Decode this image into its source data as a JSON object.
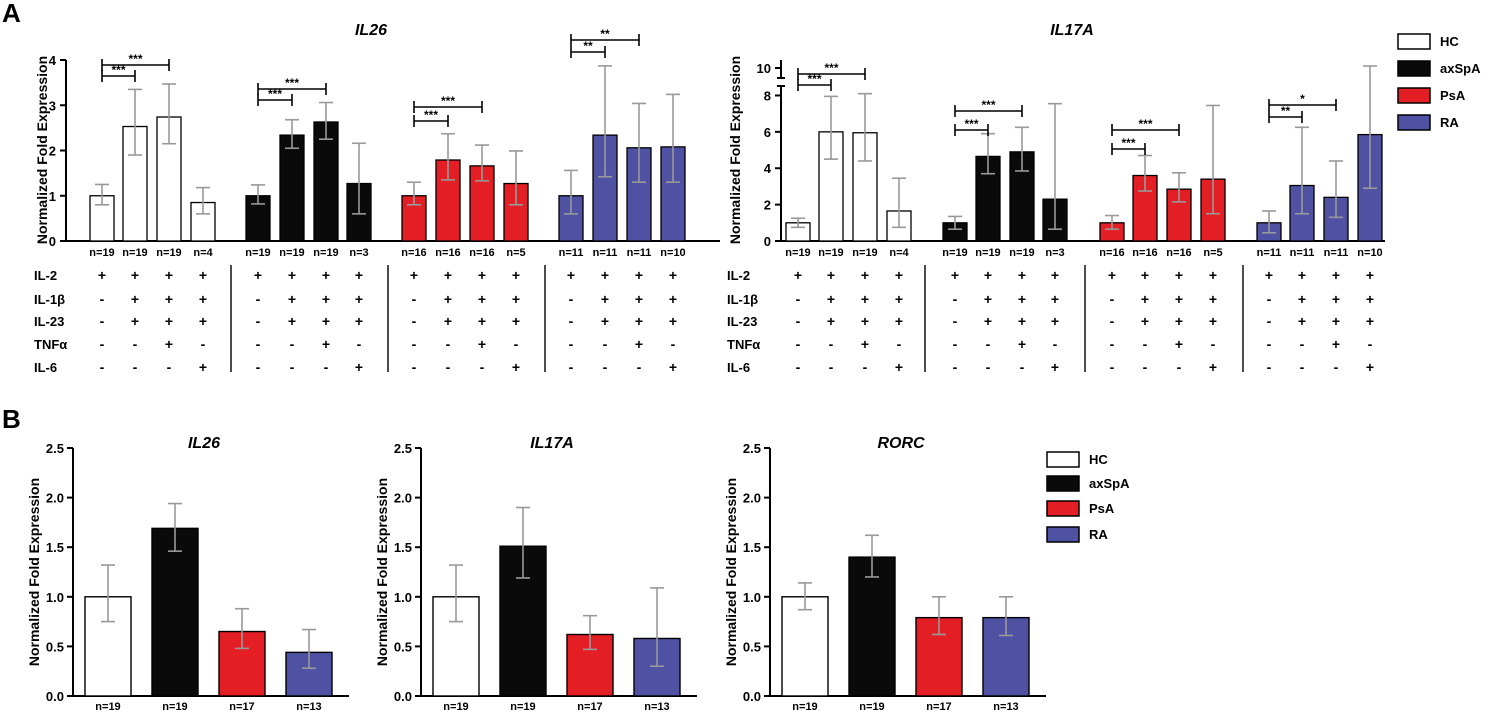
{
  "figure": {
    "panel_a_label": "A",
    "panel_b_label": "B",
    "legend": [
      {
        "name": "HC",
        "color": "#ffffff"
      },
      {
        "name": "axSpA",
        "color": "#0a0a0a"
      },
      {
        "name": "PsA",
        "color": "#e31e24"
      },
      {
        "name": "RA",
        "color": "#4f52a3"
      }
    ]
  },
  "chart_data": [
    {
      "id": "A-IL26",
      "type": "bar",
      "title": "IL26",
      "ylabel": "Normalized Fold Expression",
      "ylim": [
        0,
        4
      ],
      "yticks": [
        "0",
        "1",
        "2",
        "3",
        "4"
      ],
      "groups": [
        "HC",
        "axSpA",
        "PsA",
        "RA"
      ],
      "series": [
        {
          "name": "HC",
          "values": [
            1.0,
            2.53,
            2.74,
            0.85
          ],
          "err_low": [
            0.8,
            1.9,
            2.15,
            0.6
          ],
          "err_high": [
            1.25,
            3.35,
            3.47,
            1.18
          ],
          "n": [
            "n=19",
            "n=19",
            "n=19",
            "n=4"
          ]
        },
        {
          "name": "axSpA",
          "values": [
            1.0,
            2.34,
            2.63,
            1.27
          ],
          "err_low": [
            0.82,
            2.05,
            2.25,
            0.6
          ],
          "err_high": [
            1.24,
            2.68,
            3.06,
            2.16
          ],
          "n": [
            "n=19",
            "n=19",
            "n=19",
            "n=3"
          ]
        },
        {
          "name": "PsA",
          "values": [
            1.0,
            1.79,
            1.66,
            1.27
          ],
          "err_low": [
            0.8,
            1.35,
            1.33,
            0.8
          ],
          "err_high": [
            1.3,
            2.37,
            2.12,
            1.99
          ],
          "n": [
            "n=16",
            "n=16",
            "n=16",
            "n=5"
          ]
        },
        {
          "name": "RA",
          "values": [
            1.0,
            2.34,
            2.06,
            2.08
          ],
          "err_low": [
            0.6,
            1.42,
            1.3,
            1.3
          ],
          "err_high": [
            1.56,
            3.87,
            3.04,
            3.24
          ],
          "n": [
            "n=11",
            "n=11",
            "n=11",
            "n=10"
          ]
        }
      ],
      "significance": [
        [
          {
            "to": 1,
            "label": "***"
          },
          {
            "to": 2,
            "label": "***"
          }
        ],
        [
          {
            "to": 1,
            "label": "***"
          },
          {
            "to": 2,
            "label": "***"
          }
        ],
        [
          {
            "to": 1,
            "label": "***"
          },
          {
            "to": 2,
            "label": "***"
          }
        ],
        [
          {
            "to": 1,
            "label": "**"
          },
          {
            "to": 2,
            "label": "**"
          }
        ]
      ]
    },
    {
      "id": "A-IL17A",
      "type": "bar",
      "title": "IL17A",
      "ylabel": "Normalized Fold Expression",
      "ylim": [
        0,
        10
      ],
      "axis_break": [
        8.5,
        9.5
      ],
      "yticks": [
        "0",
        "2",
        "4",
        "6",
        "8",
        "10"
      ],
      "groups": [
        "HC",
        "axSpA",
        "PsA",
        "RA"
      ],
      "series": [
        {
          "name": "HC",
          "values": [
            1.0,
            6.0,
            5.95,
            1.65
          ],
          "err_low": [
            0.75,
            4.5,
            4.4,
            0.75
          ],
          "err_high": [
            1.25,
            7.95,
            8.1,
            3.45
          ],
          "n": [
            "n=19",
            "n=19",
            "n=19",
            "n=4"
          ]
        },
        {
          "name": "axSpA",
          "values": [
            1.0,
            4.65,
            4.9,
            2.3
          ],
          "err_low": [
            0.65,
            3.7,
            3.85,
            0.65
          ],
          "err_high": [
            1.35,
            5.9,
            6.25,
            7.55
          ],
          "n": [
            "n=19",
            "n=19",
            "n=19",
            "n=3"
          ]
        },
        {
          "name": "PsA",
          "values": [
            1.0,
            3.6,
            2.85,
            3.4
          ],
          "err_low": [
            0.65,
            2.75,
            2.15,
            1.5
          ],
          "err_high": [
            1.4,
            4.7,
            3.75,
            7.45
          ],
          "n": [
            "n=16",
            "n=16",
            "n=16",
            "n=5"
          ]
        },
        {
          "name": "RA",
          "values": [
            1.0,
            3.05,
            2.4,
            5.85
          ],
          "err_low": [
            0.45,
            1.5,
            1.3,
            2.9
          ],
          "err_high": [
            1.65,
            6.25,
            4.4,
            10.4
          ],
          "n": [
            "n=11",
            "n=11",
            "n=11",
            "n=10"
          ]
        }
      ],
      "significance": [
        [
          {
            "to": 1,
            "label": "***"
          },
          {
            "to": 2,
            "label": "***"
          }
        ],
        [
          {
            "to": 1,
            "label": "***"
          },
          {
            "to": 2,
            "label": "***"
          }
        ],
        [
          {
            "to": 1,
            "label": "***"
          },
          {
            "to": 2,
            "label": "***"
          }
        ],
        [
          {
            "to": 1,
            "label": "**"
          },
          {
            "to": 2,
            "label": "*"
          }
        ]
      ]
    },
    {
      "id": "B-IL26",
      "type": "bar",
      "title": "IL26",
      "ylabel": "Normalized Fold Expression",
      "ylim": [
        0,
        2.5
      ],
      "yticks": [
        "0.0",
        "0.5",
        "1.0",
        "1.5",
        "2.0",
        "2.5"
      ],
      "categories": [
        "HC",
        "axSpA",
        "PsA",
        "RA"
      ],
      "values": [
        1.0,
        1.69,
        0.65,
        0.44
      ],
      "err_low": [
        0.75,
        1.46,
        0.48,
        0.28
      ],
      "err_high": [
        1.32,
        1.94,
        0.88,
        0.67
      ],
      "n": [
        "n=19",
        "n=19",
        "n=17",
        "n=13"
      ]
    },
    {
      "id": "B-IL17A",
      "type": "bar",
      "title": "IL17A",
      "ylabel": "Normalized Fold Expression",
      "ylim": [
        0,
        2.5
      ],
      "yticks": [
        "0.0",
        "0.5",
        "1.0",
        "1.5",
        "2.0",
        "2.5"
      ],
      "categories": [
        "HC",
        "axSpA",
        "PsA",
        "RA"
      ],
      "values": [
        1.0,
        1.51,
        0.62,
        0.58
      ],
      "err_low": [
        0.75,
        1.19,
        0.47,
        0.3
      ],
      "err_high": [
        1.32,
        1.9,
        0.81,
        1.09
      ],
      "n": [
        "n=19",
        "n=19",
        "n=17",
        "n=13"
      ]
    },
    {
      "id": "B-RORC",
      "type": "bar",
      "title": "RORC",
      "ylabel": "Normalized Fold Expression",
      "ylim": [
        0,
        2.5
      ],
      "yticks": [
        "0.0",
        "0.5",
        "1.0",
        "1.5",
        "2.0",
        "2.5"
      ],
      "categories": [
        "HC",
        "axSpA",
        "PsA",
        "RA"
      ],
      "values": [
        1.0,
        1.4,
        0.79,
        0.79
      ],
      "err_low": [
        0.87,
        1.2,
        0.62,
        0.61
      ],
      "err_high": [
        1.14,
        1.62,
        1.0,
        1.0
      ],
      "n": [
        "n=19",
        "n=19",
        "n=17",
        "n=13"
      ]
    }
  ],
  "conditions_table": {
    "rows": [
      {
        "label": "IL-2",
        "signs": [
          "+",
          "+",
          "+",
          "+"
        ]
      },
      {
        "label": "IL-1β",
        "signs": [
          "-",
          "+",
          "+",
          "+"
        ]
      },
      {
        "label": "IL-23",
        "signs": [
          "-",
          "+",
          "+",
          "+"
        ]
      },
      {
        "label": "TNFα",
        "signs": [
          "-",
          "-",
          "+",
          "-"
        ]
      },
      {
        "label": "IL-6",
        "signs": [
          "-",
          "-",
          "-",
          "+"
        ]
      }
    ]
  }
}
